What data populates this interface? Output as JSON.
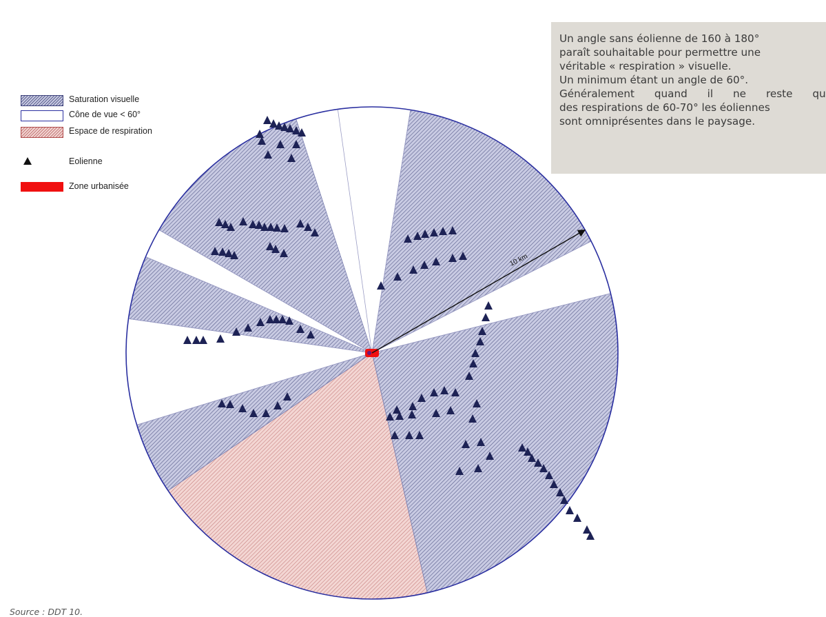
{
  "legend": {
    "saturation": "Saturation visuelle",
    "cone": "Cône de vue < 60°",
    "respiration": "Espace de respiration",
    "eolienne": "Eolienne",
    "urbanisee": "Zone urbanisée"
  },
  "note": {
    "lines": [
      "Un angle sans éolienne de 160 à 180°",
      "paraît souhaitable pour permettre une",
      "véritable « respiration » visuelle.",
      "Un minimum étant un angle de 60°.",
      "Généralement quand il ne reste que",
      "des respirations de 60-70° les éoliennes",
      "sont omniprésentes dans le paysage."
    ]
  },
  "scale_label": "10 km",
  "source": "Source : DDT 10.",
  "colors": {
    "saturation_fill": "#c9cbe3",
    "saturation_hatch": "#5e6390",
    "circle_outline": "#2a2fa0",
    "respiration_fill": "#f3d6d3",
    "respiration_hatch": "#c47a7a",
    "turbine": "#1d2255",
    "urban": "#f01010",
    "note_bg": "#dedbd5"
  }
}
